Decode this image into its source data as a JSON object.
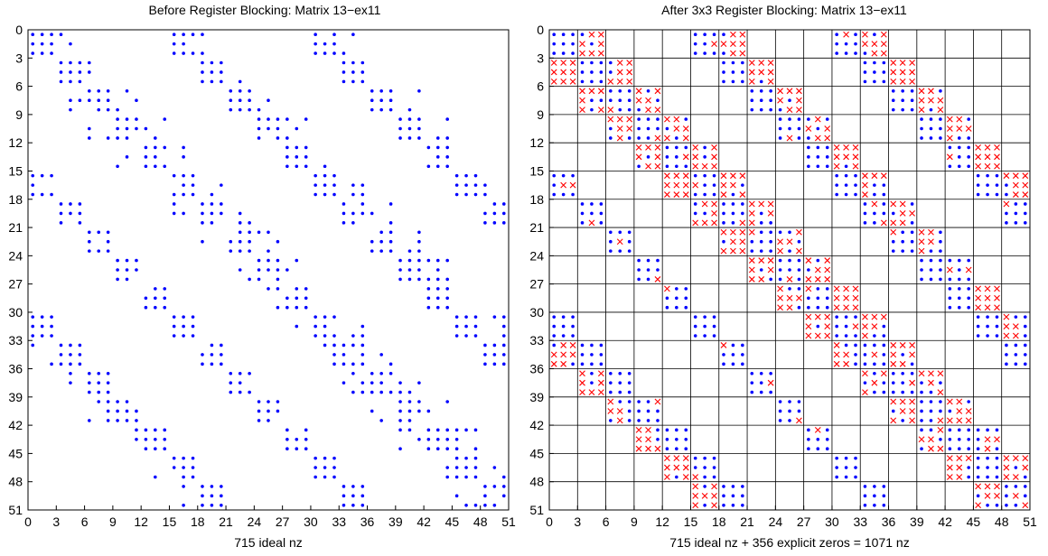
{
  "chart_data": [
    {
      "type": "scatter",
      "title": "Before Register Blocking: Matrix 13−ex11",
      "xlabel": "715 ideal nz",
      "ylabel": "",
      "xlim": [
        0,
        51
      ],
      "ylim": [
        0,
        51
      ],
      "y_reversed": true,
      "xticks": [
        0,
        3,
        6,
        9,
        12,
        15,
        18,
        21,
        24,
        27,
        30,
        33,
        36,
        39,
        42,
        45,
        48,
        51
      ],
      "yticks": [
        0,
        3,
        6,
        9,
        12,
        15,
        18,
        21,
        24,
        27,
        30,
        33,
        36,
        39,
        42,
        45,
        48,
        51
      ],
      "grid": false,
      "series": [
        {
          "name": "",
          "marker": "dot",
          "color": "#0000ff",
          "pattern": "banded sparse matrix, 15 row-block bands per period of 15"
        }
      ]
    },
    {
      "type": "scatter",
      "title": "After 3x3 Register Blocking: Matrix 13−ex11",
      "xlabel": "715 ideal nz + 356 explicit zeros = 1071 nz",
      "ylabel": "",
      "xlim": [
        0,
        51
      ],
      "ylim": [
        0,
        51
      ],
      "y_reversed": true,
      "xticks": [
        0,
        3,
        6,
        9,
        12,
        15,
        18,
        21,
        24,
        27,
        30,
        33,
        36,
        39,
        42,
        45,
        48,
        51
      ],
      "yticks": [
        0,
        3,
        6,
        9,
        12,
        15,
        18,
        21,
        24,
        27,
        30,
        33,
        36,
        39,
        42,
        45,
        48,
        51
      ],
      "grid": true,
      "block_size": 3,
      "series": [
        {
          "name": "",
          "marker": "dot",
          "color": "#0000ff"
        },
        {
          "name": "",
          "marker": "x",
          "color": "#ff0000"
        }
      ]
    }
  ],
  "colors": {
    "nonzero": "#0000ff",
    "explicit_zero": "#ff0000",
    "axis": "#000000"
  }
}
